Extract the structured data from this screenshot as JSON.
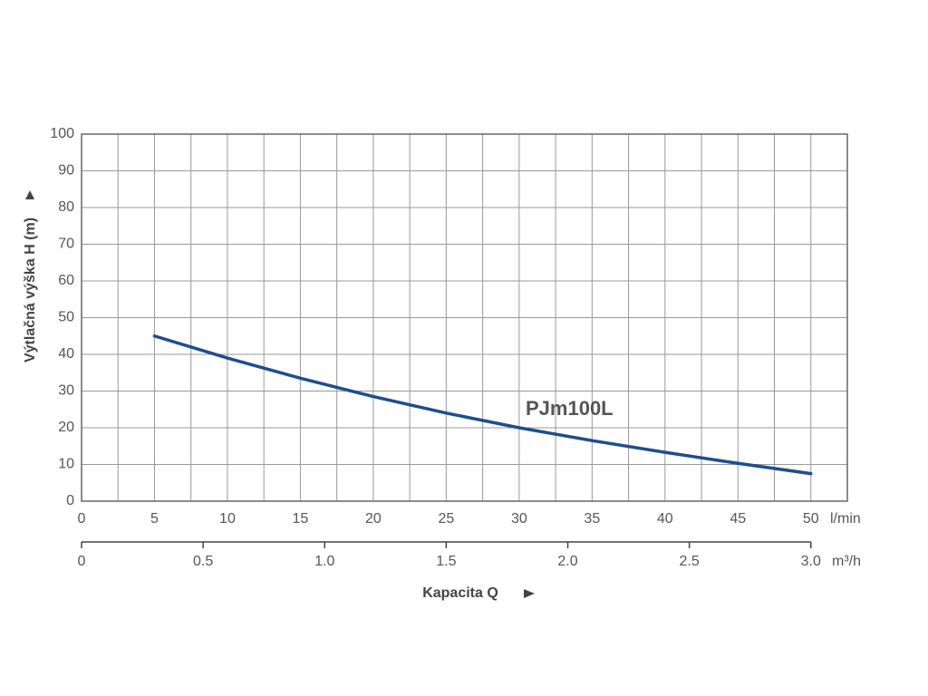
{
  "chart_data": {
    "type": "line",
    "ylabel": "Výtlačná výška H (m)",
    "xlabel": "Kapacita Q",
    "xunit": "l/min",
    "x2unit": "m³/h",
    "x": [
      5,
      10,
      15,
      20,
      25,
      30,
      35,
      40,
      45,
      50
    ],
    "series": [
      {
        "name": "PJm100L",
        "color": "#1f4e8c",
        "values": [
          45,
          39,
          33.5,
          28.5,
          24,
          20,
          16.5,
          13.3,
          10.3,
          7.5
        ]
      }
    ],
    "xlim": [
      0,
      52.5
    ],
    "xticks": [
      0,
      5,
      10,
      15,
      20,
      25,
      30,
      35,
      40,
      45,
      50
    ],
    "x2lim": [
      0,
      3.15
    ],
    "x2ticks": [
      0,
      0.5,
      {
        "value": 1,
        "label": "1.0"
      },
      1.5,
      {
        "value": 2,
        "label": "2.0"
      },
      2.5,
      {
        "value": 3,
        "label": "3.0"
      }
    ],
    "ylim": [
      0,
      100
    ],
    "yticks": [
      0,
      10,
      20,
      30,
      40,
      50,
      60,
      70,
      80,
      90,
      100
    ],
    "grid": true,
    "x_minor_grid": true
  }
}
